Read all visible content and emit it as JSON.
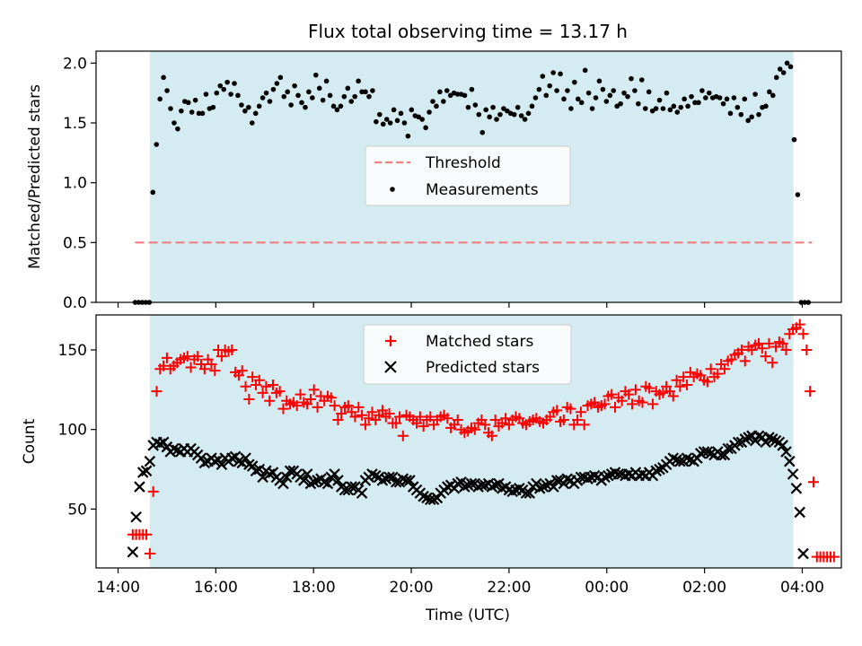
{
  "title": "Flux total observing time = 13.17 h",
  "colors": {
    "shade": "#d4ebf1",
    "threshold": "#f08080",
    "measurement": "#000000",
    "matched": "#ff0000",
    "predicted": "#000000"
  },
  "chart_data": [
    {
      "type": "scatter",
      "ylabel": "Matched/Predicted stars",
      "ylim": [
        0,
        2.1
      ],
      "yticks": [
        0,
        0.5,
        1.0,
        1.5,
        2.0
      ],
      "ytick_labels": [
        "0.0",
        "0.5",
        "1.0",
        "1.5",
        "2.0"
      ],
      "xlim_hours": [
        13.55,
        28.8
      ],
      "observing_window_hours": [
        14.65,
        27.82
      ],
      "legend": {
        "placement": "center",
        "entries": [
          "Threshold",
          "Measurements"
        ]
      },
      "threshold": {
        "name": "Threshold",
        "value": 0.5,
        "x_range_hours": [
          14.35,
          28.2
        ]
      },
      "series": [
        {
          "name": "Measurements",
          "x_start_hours": 14.35,
          "x_step_hours": 0.0725,
          "values": [
            0,
            0,
            0,
            0,
            0,
            0.92,
            1.32,
            1.7,
            1.88,
            1.77,
            1.62,
            1.5,
            1.45,
            1.6,
            1.68,
            1.67,
            1.59,
            1.69,
            1.58,
            1.58,
            1.74,
            1.62,
            1.63,
            1.75,
            1.81,
            1.78,
            1.84,
            1.74,
            1.83,
            1.73,
            1.65,
            1.6,
            1.63,
            1.5,
            1.58,
            1.64,
            1.71,
            1.75,
            1.68,
            1.78,
            1.83,
            1.88,
            1.72,
            1.76,
            1.65,
            1.81,
            1.73,
            1.67,
            1.63,
            1.76,
            1.71,
            1.9,
            1.79,
            1.69,
            1.85,
            1.73,
            1.64,
            1.61,
            1.64,
            1.72,
            1.79,
            1.68,
            1.72,
            1.85,
            1.76,
            1.76,
            1.72,
            1.77,
            1.51,
            1.57,
            1.49,
            1.53,
            1.5,
            1.61,
            1.52,
            1.58,
            1.5,
            1.39,
            1.61,
            1.56,
            1.55,
            1.53,
            1.46,
            1.59,
            1.68,
            1.64,
            1.76,
            1.68,
            1.77,
            1.73,
            1.75,
            1.74,
            1.74,
            1.73,
            1.63,
            1.78,
            1.65,
            1.57,
            1.42,
            1.61,
            1.55,
            1.63,
            1.53,
            1.57,
            1.62,
            1.6,
            1.58,
            1.57,
            1.63,
            1.56,
            1.53,
            1.58,
            1.64,
            1.71,
            1.78,
            1.89,
            1.73,
            1.81,
            1.92,
            1.77,
            1.91,
            1.7,
            1.77,
            1.62,
            1.84,
            1.7,
            1.67,
            1.94,
            1.75,
            1.62,
            1.71,
            1.85,
            1.78,
            1.68,
            1.73,
            1.77,
            1.64,
            1.66,
            1.75,
            1.72,
            1.87,
            1.77,
            1.66,
            1.86,
            1.62,
            1.76,
            1.6,
            1.62,
            1.69,
            1.62,
            1.75,
            1.61,
            1.64,
            1.59,
            1.63,
            1.7,
            1.64,
            1.72,
            1.67,
            1.67,
            1.77,
            1.71,
            1.75,
            1.71,
            1.72,
            1.71,
            1.66,
            1.7,
            1.58,
            1.71,
            1.63,
            1.57,
            1.7,
            1.52,
            1.55,
            1.74,
            1.57,
            1.63,
            1.64,
            1.76,
            1.73,
            1.88,
            1.95,
            1.92,
            2.0,
            1.97,
            1.36,
            0.9,
            0,
            0,
            0
          ]
        }
      ]
    },
    {
      "type": "scatter",
      "xlabel": "Time (UTC)",
      "ylabel": "Count",
      "ylim": [
        13,
        172
      ],
      "yticks": [
        50,
        100,
        150
      ],
      "ytick_labels": [
        "50",
        "100",
        "150"
      ],
      "xlim_hours": [
        13.55,
        28.8
      ],
      "xticks_hours": [
        14,
        16,
        18,
        20,
        22,
        24,
        26,
        28
      ],
      "xtick_labels": [
        "14:00",
        "16:00",
        "18:00",
        "20:00",
        "22:00",
        "00:00",
        "02:00",
        "04:00"
      ],
      "observing_window_hours": [
        14.65,
        27.82
      ],
      "legend": {
        "placement": "upper center",
        "entries": [
          "Matched stars",
          "Predicted stars"
        ]
      },
      "series": [
        {
          "name": "Matched stars",
          "marker": "+",
          "x_start_hours": 14.3,
          "x_step_hours": 0.07,
          "values": [
            34,
            34,
            34,
            34,
            34,
            22,
            61,
            124,
            138,
            140,
            145,
            138,
            140,
            142,
            144,
            145,
            146,
            139,
            144,
            146,
            141,
            138,
            144,
            141,
            137,
            150,
            146,
            150,
            149,
            150,
            136,
            134,
            137,
            127,
            119,
            133,
            128,
            131,
            123,
            127,
            118,
            128,
            123,
            124,
            113,
            118,
            116,
            117,
            115,
            122,
            117,
            116,
            119,
            125,
            114,
            121,
            118,
            121,
            120,
            115,
            106,
            110,
            114,
            115,
            111,
            108,
            114,
            109,
            103,
            107,
            111,
            106,
            109,
            112,
            108,
            110,
            104,
            104,
            108,
            96,
            109,
            108,
            106,
            104,
            108,
            102,
            106,
            108,
            103,
            106,
            108,
            109,
            107,
            101,
            103,
            106,
            100,
            98,
            99,
            101,
            100,
            104,
            106,
            103,
            98,
            96,
            106,
            102,
            104,
            107,
            103,
            106,
            108,
            107,
            104,
            103,
            105,
            106,
            107,
            105,
            104,
            106,
            108,
            111,
            112,
            105,
            106,
            114,
            113,
            103,
            106,
            111,
            103,
            115,
            116,
            117,
            114,
            115,
            116,
            121,
            122,
            114,
            120,
            118,
            124,
            122,
            116,
            125,
            118,
            117,
            127,
            126,
            116,
            124,
            122,
            123,
            127,
            124,
            121,
            131,
            127,
            133,
            128,
            136,
            133,
            135,
            134,
            131,
            130,
            138,
            133,
            135,
            141,
            138,
            143,
            144,
            147,
            148,
            150,
            143,
            152,
            150,
            153,
            154,
            151,
            146,
            154,
            142,
            152,
            155,
            154,
            150,
            160,
            163,
            164,
            166,
            160,
            150,
            124,
            67,
            20,
            20,
            20,
            20,
            20,
            20
          ]
        },
        {
          "name": "Predicted stars",
          "marker": "x",
          "x_start_hours": 14.3,
          "x_step_hours": 0.07,
          "values": [
            23,
            45,
            64,
            73,
            74,
            80,
            90,
            92,
            91,
            92,
            89,
            86,
            88,
            87,
            86,
            88,
            86,
            88,
            86,
            84,
            82,
            79,
            80,
            82,
            80,
            81,
            78,
            82,
            80,
            82,
            83,
            80,
            79,
            82,
            78,
            77,
            74,
            75,
            70,
            74,
            72,
            73,
            70,
            68,
            66,
            70,
            74,
            74,
            72,
            70,
            68,
            72,
            66,
            67,
            68,
            69,
            67,
            66,
            70,
            72,
            68,
            64,
            62,
            62,
            64,
            64,
            62,
            60,
            68,
            70,
            72,
            71,
            70,
            68,
            69,
            70,
            70,
            67,
            67,
            69,
            68,
            68,
            64,
            62,
            60,
            58,
            57,
            56,
            56,
            57,
            60,
            62,
            64,
            65,
            63,
            66,
            67,
            64,
            65,
            66,
            66,
            64,
            65,
            65,
            66,
            64,
            65,
            66,
            63,
            64,
            62,
            61,
            62,
            63,
            62,
            60,
            60,
            64,
            66,
            63,
            64,
            65,
            66,
            64,
            68,
            68,
            66,
            69,
            68,
            66,
            68,
            70,
            70,
            69,
            70,
            71,
            70,
            68,
            70,
            71,
            72,
            73,
            72,
            72,
            71,
            72,
            71,
            73,
            71,
            72,
            71,
            73,
            71,
            74,
            75,
            76,
            78,
            80,
            82,
            81,
            80,
            80,
            82,
            81,
            80,
            82,
            85,
            86,
            86,
            85,
            84,
            86,
            84,
            84,
            88,
            88,
            90,
            92,
            92,
            94,
            95,
            96,
            93,
            96,
            95,
            92,
            95,
            94,
            93,
            92,
            90,
            86,
            80,
            72,
            63,
            48,
            22
          ]
        }
      ]
    }
  ]
}
